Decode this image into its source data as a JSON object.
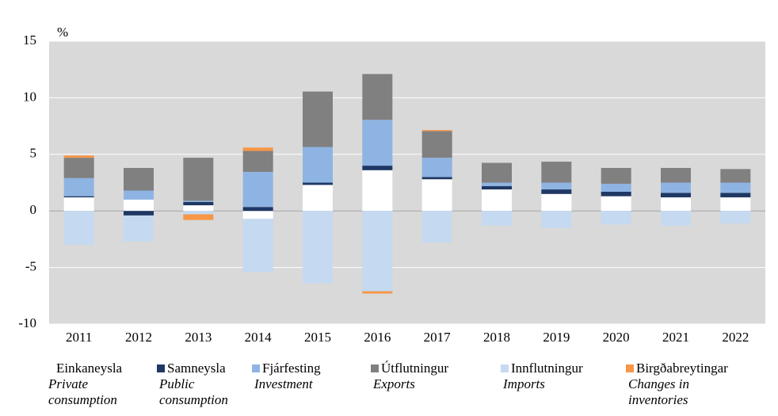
{
  "chart_data": {
    "type": "bar",
    "stacked": true,
    "y_unit_label": "%",
    "categories": [
      "2011",
      "2012",
      "2013",
      "2014",
      "2015",
      "2016",
      "2017",
      "2018",
      "2019",
      "2020",
      "2021",
      "2022"
    ],
    "series": [
      {
        "name": "Einkaneysla",
        "name_en": "Private consumption",
        "color": "#ffffff",
        "values": [
          1.2,
          1.0,
          0.5,
          -0.7,
          2.3,
          3.6,
          2.8,
          1.9,
          1.5,
          1.3,
          1.2,
          1.2
        ]
      },
      {
        "name": "Samneysla",
        "name_en": "Public consumption",
        "color": "#1f3864",
        "values": [
          0.1,
          -0.4,
          0.3,
          0.35,
          0.2,
          0.4,
          0.2,
          0.3,
          0.4,
          0.4,
          0.4,
          0.4
        ]
      },
      {
        "name": "Fjárfesting",
        "name_en": "Investment",
        "color": "#8eb4e3",
        "values": [
          1.6,
          0.8,
          0.1,
          3.1,
          3.15,
          4.05,
          1.7,
          0.3,
          0.6,
          0.7,
          0.9,
          0.9
        ]
      },
      {
        "name": "Útflutningur",
        "name_en": "Exports",
        "color": "#808080",
        "values": [
          1.8,
          2.0,
          3.8,
          1.85,
          4.9,
          4.05,
          2.35,
          1.75,
          1.85,
          1.4,
          1.3,
          1.2
        ]
      },
      {
        "name": "Innflutningur",
        "name_en": "Imports",
        "color": "#c5d9f1",
        "values": [
          -3.0,
          -2.3,
          -0.3,
          -4.7,
          -6.4,
          -7.1,
          -2.8,
          -1.3,
          -1.5,
          -1.2,
          -1.3,
          -1.1
        ]
      },
      {
        "name": "Birgðabreytingar",
        "name_en": "Changes in inventories",
        "color": "#f79646",
        "values": [
          0.2,
          0,
          -0.5,
          0.3,
          0,
          -0.2,
          0.1,
          0,
          0,
          0,
          0,
          0
        ]
      }
    ],
    "ylim": [
      -10,
      15
    ],
    "yticks": [
      -10,
      -5,
      0,
      5,
      10,
      15
    ],
    "grid": true
  }
}
